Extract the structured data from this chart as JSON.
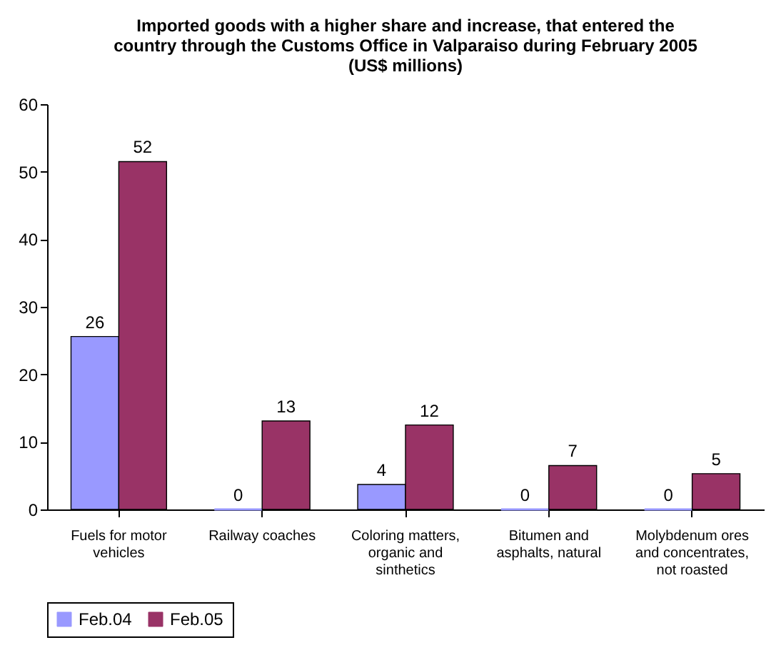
{
  "chart_data": {
    "type": "bar",
    "title": "Imported goods with a higher share and increase, that entered the country through the Customs Office in Valparaiso during February 2005 (US$ millions)",
    "categories": [
      "Fuels for motor vehicles",
      "Railway coaches",
      "Coloring matters, organic and sinthetics",
      "Bitumen and asphalts, natural",
      "Molybdenum ores and concentrates, not roasted"
    ],
    "series": [
      {
        "name": "Feb.04",
        "color": "#9999ff",
        "values": [
          25.6,
          0,
          3.7,
          0,
          0
        ],
        "value_labels": [
          "26",
          "0",
          "4",
          "0",
          "0"
        ]
      },
      {
        "name": "Feb.05",
        "color": "#993366",
        "values": [
          51.5,
          13.1,
          12.5,
          6.5,
          5.3
        ],
        "value_labels": [
          "52",
          "13",
          "12",
          "7",
          "5"
        ]
      }
    ],
    "ylim": [
      0,
      60
    ],
    "yticks": [
      0,
      10,
      20,
      30,
      40,
      50,
      60
    ],
    "grid": false,
    "legend": "bottom"
  }
}
